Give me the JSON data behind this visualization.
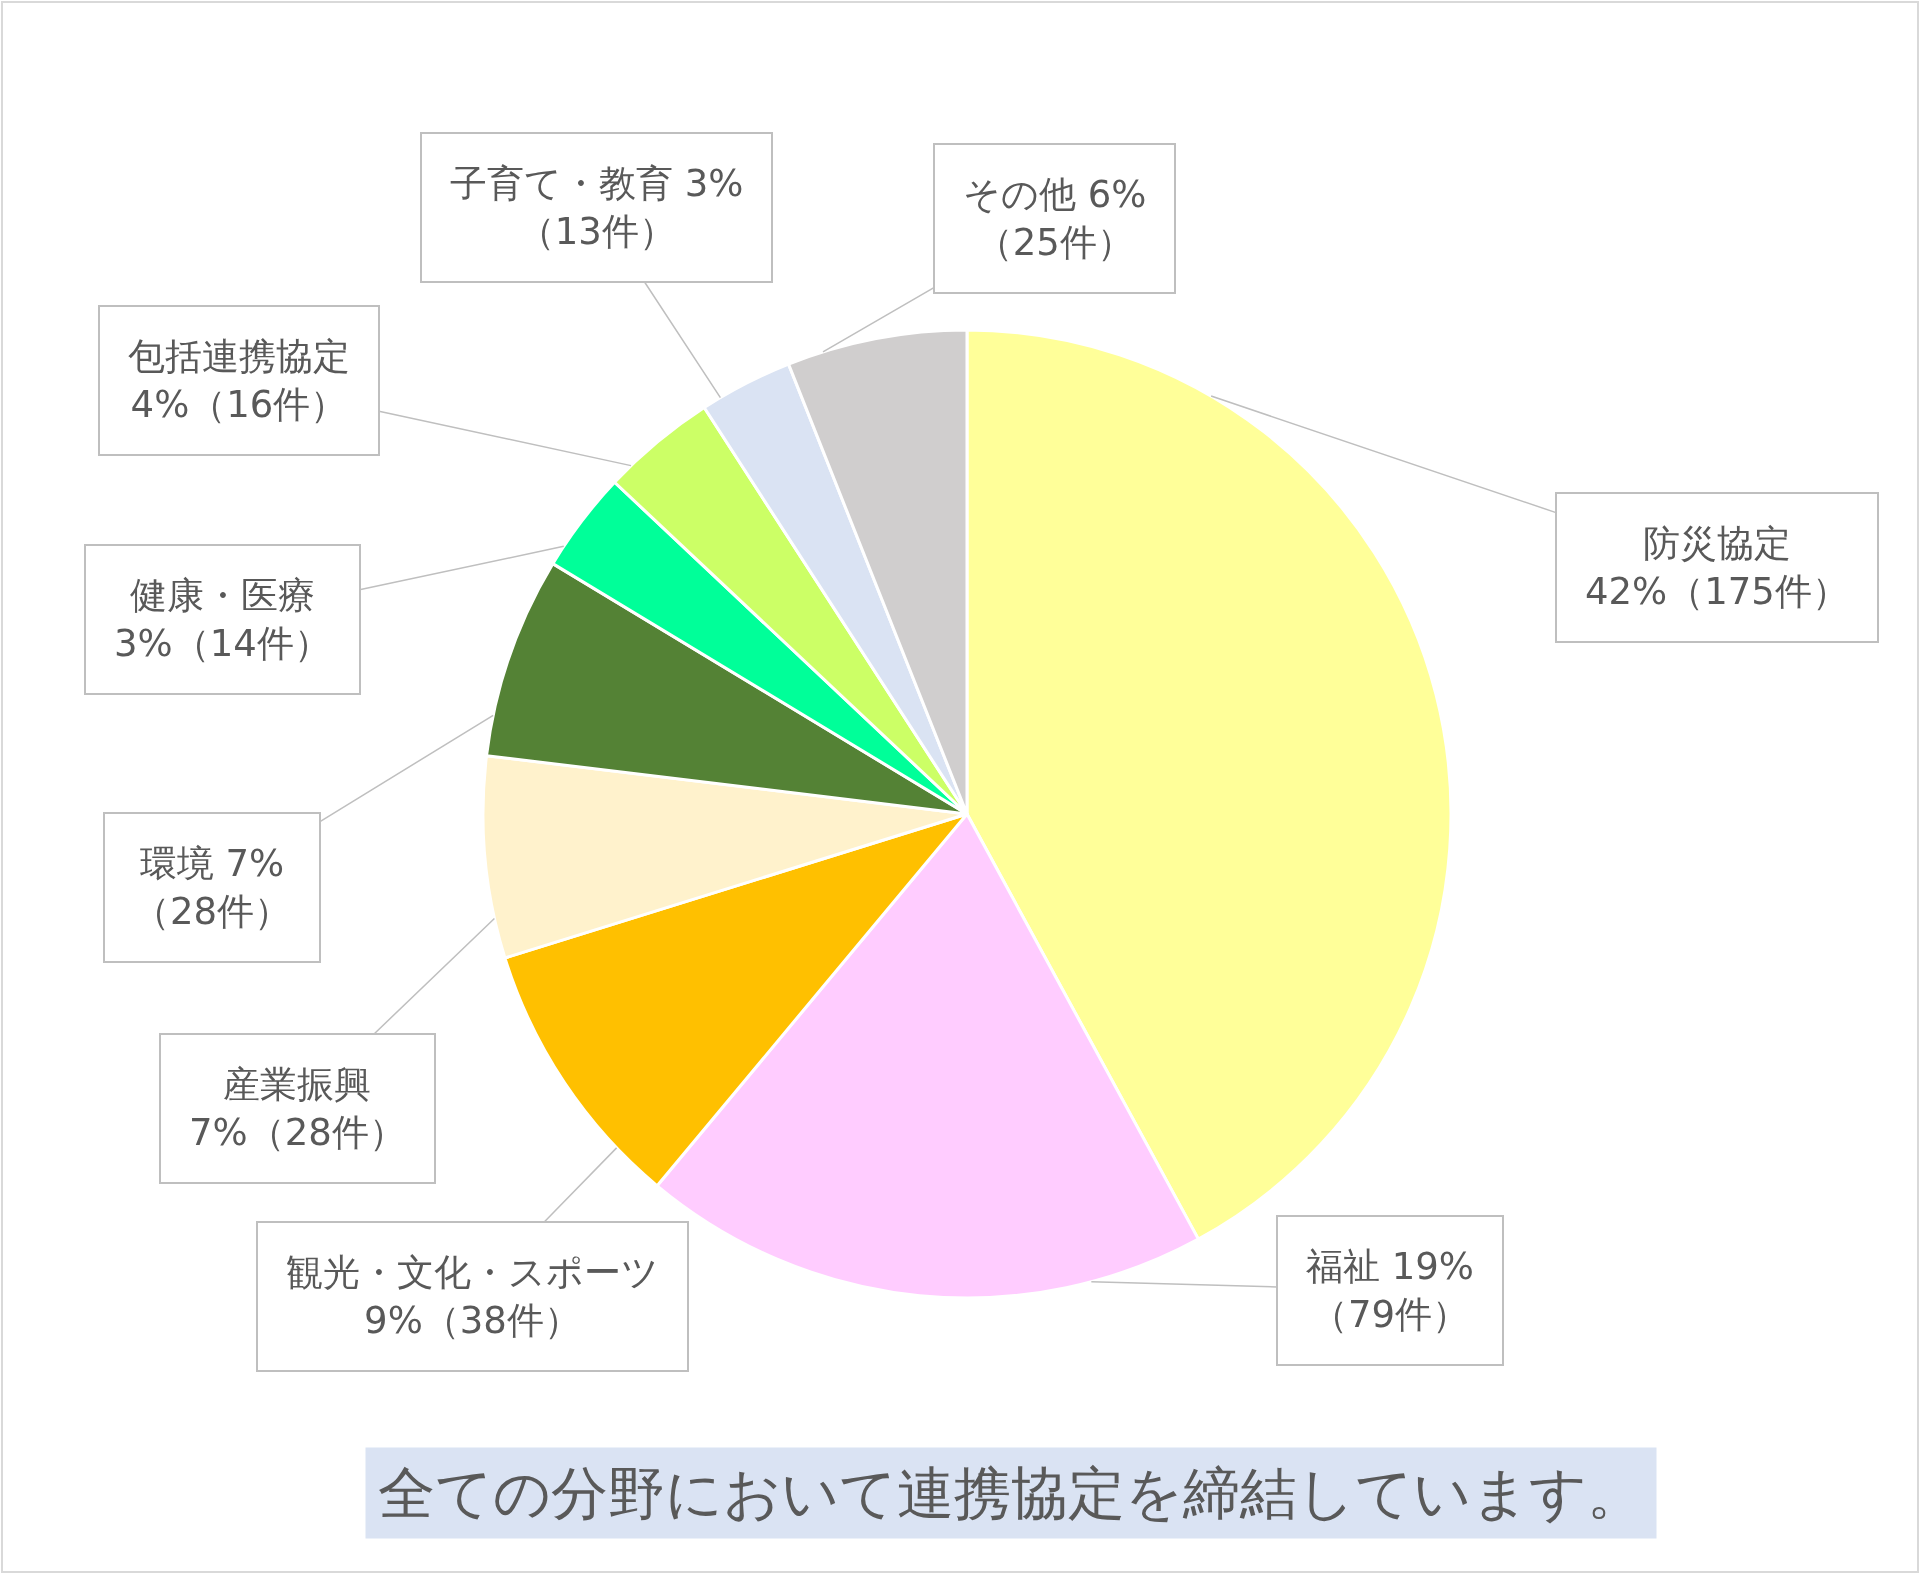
{
  "chart_data": {
    "type": "pie",
    "categories": [
      "防災協定",
      "福祉",
      "観光・文化・スポーツ",
      "産業振興",
      "環境",
      "健康・医療",
      "包括連携協定",
      "子育て・教育",
      "その他"
    ],
    "values": [
      175,
      79,
      38,
      28,
      28,
      14,
      16,
      13,
      25
    ],
    "colors": [
      "#ffff99",
      "#ffccff",
      "#ffc000",
      "#fff2cc",
      "#548235",
      "#00ff99",
      "#ccff66",
      "#dae3f3",
      "#d0cece"
    ],
    "value_labels": [
      "\n42%（175件）",
      " 19%\n（79件）",
      "\n9%（38件）",
      "\n7%（28件）",
      " 7%\n（28件）",
      "\n3%（14件）",
      "\n4%（16件）",
      " 3%\n（13件）",
      " 6%\n（25件）"
    ],
    "annotations": [
      "全ての分野において連携協定を締結しています。"
    ]
  }
}
